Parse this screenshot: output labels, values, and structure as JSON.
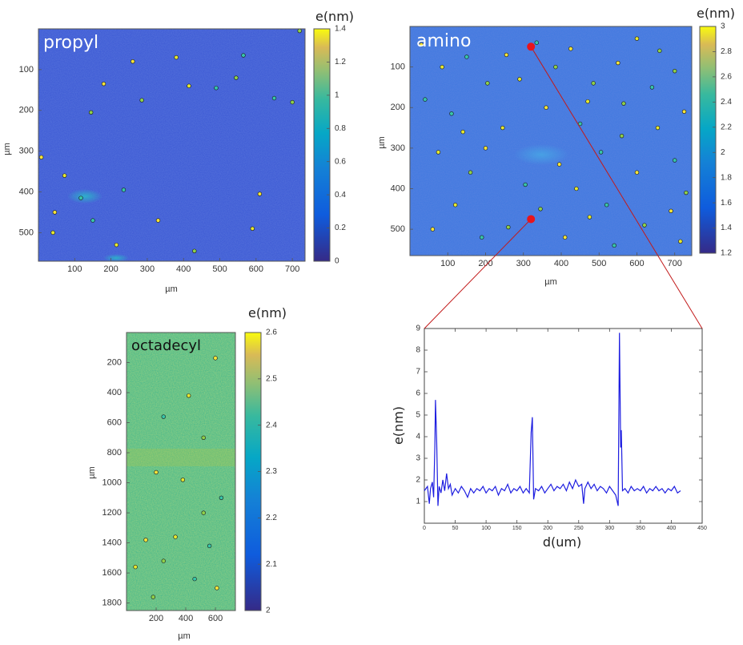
{
  "chart_data": [
    {
      "type": "heatmap",
      "title": "propyl",
      "xlabel": "µm",
      "ylabel": "µm",
      "xticks": [
        100,
        200,
        300,
        400,
        500,
        600,
        700
      ],
      "yticks": [
        100,
        200,
        300,
        400,
        500
      ],
      "xlim": [
        0,
        735
      ],
      "ylim": [
        0,
        570
      ],
      "colorbar": {
        "label": "e(nm)",
        "range": [
          0,
          1.4
        ],
        "ticks": [
          0,
          0.2,
          0.4,
          0.6,
          0.8,
          1,
          1.2,
          1.4
        ]
      },
      "background_color": "#3a57d4",
      "particles": [
        {
          "x": 8,
          "y": 315
        },
        {
          "x": 72,
          "y": 360
        },
        {
          "x": 117,
          "y": 415
        },
        {
          "x": 145,
          "y": 205
        },
        {
          "x": 180,
          "y": 135
        },
        {
          "x": 215,
          "y": 530
        },
        {
          "x": 235,
          "y": 395
        },
        {
          "x": 285,
          "y": 175
        },
        {
          "x": 330,
          "y": 470
        },
        {
          "x": 415,
          "y": 140
        },
        {
          "x": 490,
          "y": 145
        },
        {
          "x": 545,
          "y": 120
        },
        {
          "x": 610,
          "y": 405
        },
        {
          "x": 590,
          "y": 490
        },
        {
          "x": 650,
          "y": 170
        },
        {
          "x": 700,
          "y": 180
        },
        {
          "x": 45,
          "y": 450
        },
        {
          "x": 380,
          "y": 70
        },
        {
          "x": 565,
          "y": 65
        },
        {
          "x": 720,
          "y": 5
        },
        {
          "x": 260,
          "y": 80
        },
        {
          "x": 40,
          "y": 500
        },
        {
          "x": 150,
          "y": 470
        },
        {
          "x": 430,
          "y": 545
        }
      ]
    },
    {
      "type": "heatmap",
      "title": "amino",
      "xlabel": "µm",
      "ylabel": "µm",
      "xticks": [
        100,
        200,
        300,
        400,
        500,
        600,
        700
      ],
      "yticks": [
        100,
        200,
        300,
        400,
        500
      ],
      "xlim": [
        0,
        745
      ],
      "ylim": [
        0,
        565
      ],
      "colorbar": {
        "label": "e(nm)",
        "range": [
          1.2,
          3
        ],
        "ticks": [
          1.2,
          1.4,
          1.6,
          1.8,
          2,
          2.2,
          2.4,
          2.6,
          2.8,
          3
        ]
      },
      "background_color": "#3d78e0",
      "particles": [
        {
          "x": 30,
          "y": 45
        },
        {
          "x": 85,
          "y": 100
        },
        {
          "x": 150,
          "y": 75
        },
        {
          "x": 205,
          "y": 140
        },
        {
          "x": 255,
          "y": 70
        },
        {
          "x": 290,
          "y": 130
        },
        {
          "x": 335,
          "y": 40
        },
        {
          "x": 385,
          "y": 100
        },
        {
          "x": 425,
          "y": 55
        },
        {
          "x": 470,
          "y": 185
        },
        {
          "x": 450,
          "y": 240
        },
        {
          "x": 485,
          "y": 140
        },
        {
          "x": 550,
          "y": 90
        },
        {
          "x": 600,
          "y": 30
        },
        {
          "x": 640,
          "y": 150
        },
        {
          "x": 700,
          "y": 110
        },
        {
          "x": 725,
          "y": 210
        },
        {
          "x": 75,
          "y": 310
        },
        {
          "x": 110,
          "y": 215
        },
        {
          "x": 160,
          "y": 360
        },
        {
          "x": 200,
          "y": 300
        },
        {
          "x": 245,
          "y": 250
        },
        {
          "x": 305,
          "y": 390
        },
        {
          "x": 345,
          "y": 450
        },
        {
          "x": 395,
          "y": 340
        },
        {
          "x": 440,
          "y": 400
        },
        {
          "x": 505,
          "y": 310
        },
        {
          "x": 560,
          "y": 270
        },
        {
          "x": 600,
          "y": 360
        },
        {
          "x": 655,
          "y": 250
        },
        {
          "x": 700,
          "y": 330
        },
        {
          "x": 730,
          "y": 410
        },
        {
          "x": 60,
          "y": 500
        },
        {
          "x": 120,
          "y": 440
        },
        {
          "x": 190,
          "y": 520
        },
        {
          "x": 260,
          "y": 495
        },
        {
          "x": 410,
          "y": 520
        },
        {
          "x": 475,
          "y": 470
        },
        {
          "x": 540,
          "y": 540
        },
        {
          "x": 620,
          "y": 490
        },
        {
          "x": 690,
          "y": 455
        },
        {
          "x": 715,
          "y": 530
        },
        {
          "x": 40,
          "y": 180
        },
        {
          "x": 565,
          "y": 190
        },
        {
          "x": 360,
          "y": 200
        },
        {
          "x": 140,
          "y": 260
        },
        {
          "x": 520,
          "y": 440
        },
        {
          "x": 660,
          "y": 60
        }
      ]
    },
    {
      "type": "heatmap",
      "title": "octadecyl",
      "xlabel": "µm",
      "ylabel": "µm",
      "xticks": [
        200,
        400,
        600
      ],
      "yticks": [
        200,
        400,
        600,
        800,
        1000,
        1200,
        1400,
        1600,
        1800
      ],
      "xlim": [
        0,
        735
      ],
      "ylim": [
        0,
        1850
      ],
      "colorbar": {
        "label": "e(nm)",
        "range": [
          2,
          2.6
        ],
        "ticks": [
          2,
          2.1,
          2.2,
          2.3,
          2.4,
          2.5,
          2.6
        ]
      },
      "background_color": "#3fb58c",
      "particles": [
        {
          "x": 600,
          "y": 170
        },
        {
          "x": 420,
          "y": 420
        },
        {
          "x": 250,
          "y": 560
        },
        {
          "x": 520,
          "y": 700
        },
        {
          "x": 200,
          "y": 930
        },
        {
          "x": 380,
          "y": 980
        },
        {
          "x": 640,
          "y": 1100
        },
        {
          "x": 520,
          "y": 1200
        },
        {
          "x": 130,
          "y": 1380
        },
        {
          "x": 330,
          "y": 1360
        },
        {
          "x": 560,
          "y": 1420
        },
        {
          "x": 250,
          "y": 1520
        },
        {
          "x": 610,
          "y": 1700
        },
        {
          "x": 60,
          "y": 1560
        },
        {
          "x": 460,
          "y": 1640
        },
        {
          "x": 180,
          "y": 1760
        }
      ]
    },
    {
      "type": "line",
      "title": "",
      "xlabel": "d(um)",
      "ylabel": "e(nm)",
      "xlim": [
        0,
        450
      ],
      "ylim": [
        0,
        9
      ],
      "xticks": [
        0,
        50,
        100,
        150,
        200,
        250,
        300,
        350,
        400,
        450
      ],
      "yticks": [
        1,
        2,
        3,
        4,
        5,
        6,
        7,
        8,
        9
      ],
      "series": [
        {
          "color": "#1d1de0",
          "points": [
            [
              0,
              1.5
            ],
            [
              5,
              1.7
            ],
            [
              8,
              0.9
            ],
            [
              10,
              1.6
            ],
            [
              13,
              1.9
            ],
            [
              15,
              1.2
            ],
            [
              17,
              3.5
            ],
            [
              18,
              5.7
            ],
            [
              20,
              3.8
            ],
            [
              22,
              0.8
            ],
            [
              24,
              1.7
            ],
            [
              27,
              1.4
            ],
            [
              30,
              2.0
            ],
            [
              33,
              1.5
            ],
            [
              36,
              2.3
            ],
            [
              39,
              1.6
            ],
            [
              42,
              1.8
            ],
            [
              45,
              1.3
            ],
            [
              50,
              1.6
            ],
            [
              55,
              1.4
            ],
            [
              60,
              1.7
            ],
            [
              65,
              1.5
            ],
            [
              70,
              1.2
            ],
            [
              75,
              1.6
            ],
            [
              80,
              1.4
            ],
            [
              85,
              1.6
            ],
            [
              90,
              1.5
            ],
            [
              95,
              1.7
            ],
            [
              100,
              1.4
            ],
            [
              105,
              1.6
            ],
            [
              110,
              1.5
            ],
            [
              115,
              1.7
            ],
            [
              120,
              1.3
            ],
            [
              125,
              1.6
            ],
            [
              130,
              1.5
            ],
            [
              135,
              1.8
            ],
            [
              140,
              1.4
            ],
            [
              145,
              1.6
            ],
            [
              150,
              1.5
            ],
            [
              155,
              1.7
            ],
            [
              160,
              1.4
            ],
            [
              165,
              1.6
            ],
            [
              170,
              1.4
            ],
            [
              173,
              4.2
            ],
            [
              175,
              4.9
            ],
            [
              177,
              1.1
            ],
            [
              180,
              1.6
            ],
            [
              185,
              1.5
            ],
            [
              190,
              1.7
            ],
            [
              195,
              1.4
            ],
            [
              200,
              1.6
            ],
            [
              205,
              1.8
            ],
            [
              210,
              1.5
            ],
            [
              215,
              1.7
            ],
            [
              220,
              1.6
            ],
            [
              225,
              1.8
            ],
            [
              230,
              1.5
            ],
            [
              235,
              1.9
            ],
            [
              240,
              1.6
            ],
            [
              245,
              2.0
            ],
            [
              250,
              1.7
            ],
            [
              255,
              1.8
            ],
            [
              258,
              0.9
            ],
            [
              260,
              1.6
            ],
            [
              265,
              1.9
            ],
            [
              270,
              1.6
            ],
            [
              275,
              1.8
            ],
            [
              280,
              1.5
            ],
            [
              285,
              1.7
            ],
            [
              290,
              1.6
            ],
            [
              295,
              1.4
            ],
            [
              300,
              1.7
            ],
            [
              305,
              1.5
            ],
            [
              310,
              1.3
            ],
            [
              314,
              0.8
            ],
            [
              316,
              8.8
            ],
            [
              318,
              3.5
            ],
            [
              319,
              4.3
            ],
            [
              321,
              1.5
            ],
            [
              325,
              1.6
            ],
            [
              330,
              1.4
            ],
            [
              335,
              1.7
            ],
            [
              340,
              1.5
            ],
            [
              345,
              1.6
            ],
            [
              350,
              1.5
            ],
            [
              355,
              1.7
            ],
            [
              360,
              1.4
            ],
            [
              365,
              1.6
            ],
            [
              370,
              1.5
            ],
            [
              375,
              1.7
            ],
            [
              380,
              1.5
            ],
            [
              385,
              1.6
            ],
            [
              390,
              1.4
            ],
            [
              395,
              1.6
            ],
            [
              400,
              1.5
            ],
            [
              405,
              1.7
            ],
            [
              410,
              1.4
            ],
            [
              415,
              1.5
            ]
          ]
        }
      ]
    }
  ],
  "annotation": {
    "marker_color": "#e8141c",
    "line_color": "#c21a1a",
    "start_point": {
      "x": 320,
      "y": 475
    },
    "end_point": {
      "x": 320,
      "y": 50
    }
  }
}
